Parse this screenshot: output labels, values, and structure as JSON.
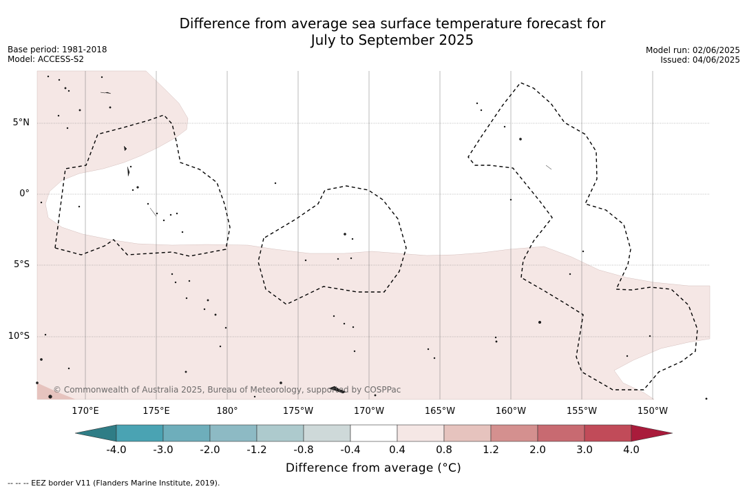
{
  "title_line1": "Difference from average sea surface temperature forecast for",
  "title_line2": "July to September 2025",
  "base_period": "Base period: 1981-2018",
  "model": "Model: ACCESS-S2",
  "model_run": "Model run: 02/06/2025",
  "issued": "Issued: 04/06/2025",
  "lat_labels": [
    "5°N",
    "0°",
    "5°S",
    "10°S"
  ],
  "lon_labels": [
    "170°E",
    "175°E",
    "180°",
    "175°W",
    "170°W",
    "165°W",
    "160°W",
    "155°W",
    "150°W"
  ],
  "copyright": "© Commonwealth of Australia 2025, Bureau of Meteorology, supported by COSPPac",
  "colorbar": {
    "ticks": [
      "-4.0",
      "-3.0",
      "-2.0",
      "-1.2",
      "-0.8",
      "-0.4",
      "0.4",
      "0.8",
      "1.2",
      "2.0",
      "3.0",
      "4.0"
    ],
    "colors": [
      "#2f7d86",
      "#4aa3b3",
      "#6eaebb",
      "#8dbac4",
      "#adcacd",
      "#ced9d9",
      "#ffffff",
      "#f5e7e5",
      "#e6c3be",
      "#d4908f",
      "#c86a71",
      "#c14b59",
      "#a91b3b"
    ],
    "title": "Difference from average ($^{\\circ}$C)",
    "title_display": "Difference from average (°C)"
  },
  "legend_note": "--  --  -- EEZ border V11 (Flanders Marine Institute, 2019)."
}
